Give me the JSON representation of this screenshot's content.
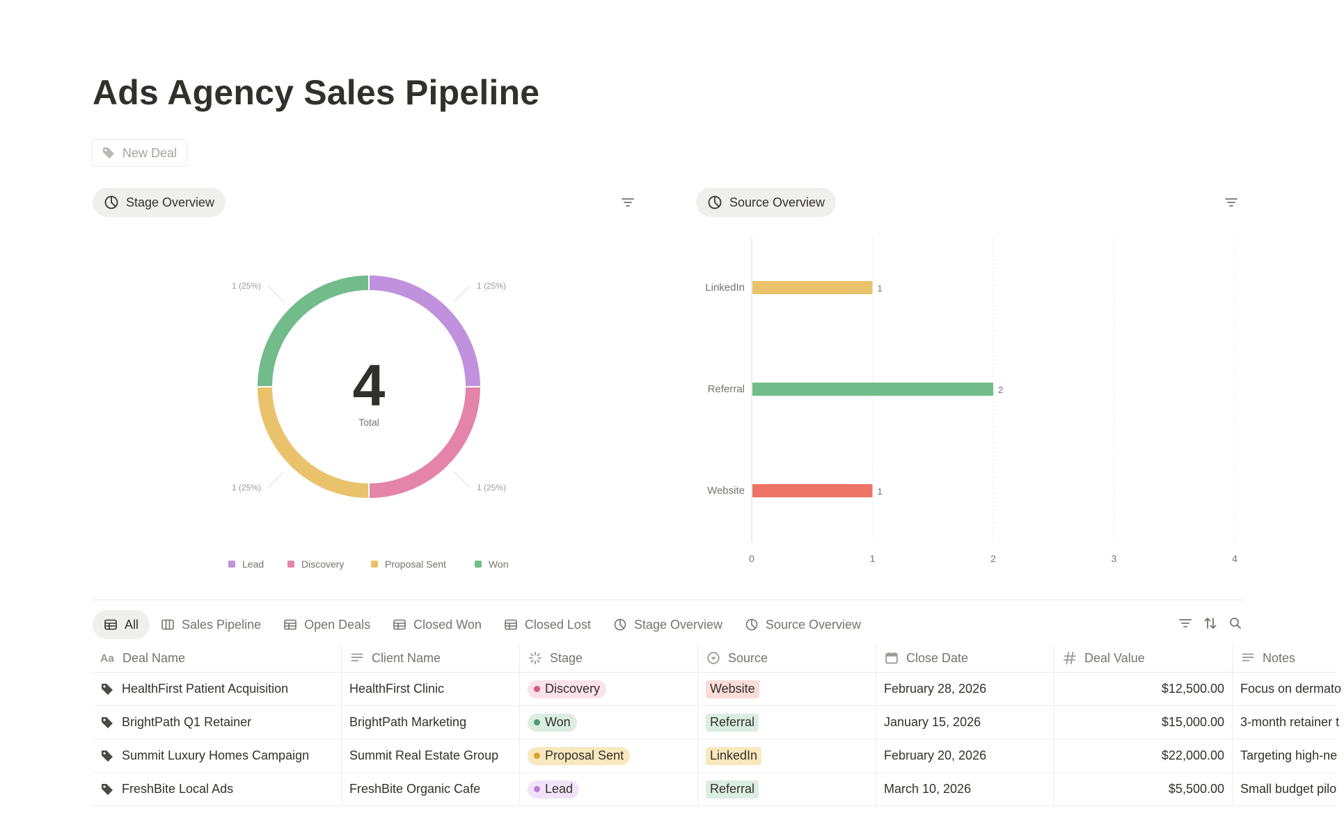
{
  "page": {
    "title": "Ads Agency Sales Pipeline",
    "new_button": "New Deal"
  },
  "stage_chart_view": {
    "label": "Stage Overview"
  },
  "source_chart_view": {
    "label": "Source Overview"
  },
  "chart_data": [
    {
      "type": "pie",
      "variant": "donut",
      "center_value": "4",
      "center_label": "Total",
      "categories": [
        "Lead",
        "Discovery",
        "Proposal Sent",
        "Won"
      ],
      "values": [
        1,
        1,
        1,
        1
      ],
      "data_labels": [
        "1 (25%)",
        "1 (25%)",
        "1 (25%)",
        "1 (25%)"
      ],
      "colors": [
        "#c091dd",
        "#e384a8",
        "#eac26b",
        "#71bc8a"
      ],
      "legend_position": "bottom"
    },
    {
      "type": "bar",
      "orientation": "horizontal",
      "categories": [
        "LinkedIn",
        "Referral",
        "Website"
      ],
      "values": [
        1,
        2,
        1
      ],
      "colors": [
        "#eac26b",
        "#71bc8a",
        "#eb7467"
      ],
      "xlim": [
        0,
        4
      ],
      "x_ticks": [
        "0",
        "1",
        "2",
        "3",
        "4"
      ],
      "grid": true
    }
  ],
  "views": {
    "tabs": [
      {
        "label": "All",
        "icon": "table-icon",
        "active": true
      },
      {
        "label": "Sales Pipeline",
        "icon": "board-icon",
        "active": false
      },
      {
        "label": "Open Deals",
        "icon": "table-icon",
        "active": false
      },
      {
        "label": "Closed Won",
        "icon": "table-icon",
        "active": false
      },
      {
        "label": "Closed Lost",
        "icon": "table-icon",
        "active": false
      },
      {
        "label": "Stage Overview",
        "icon": "chart-icon",
        "active": false
      },
      {
        "label": "Source Overview",
        "icon": "chart-icon",
        "active": false
      }
    ]
  },
  "table": {
    "columns": [
      "Deal Name",
      "Client Name",
      "Stage",
      "Source",
      "Close Date",
      "Deal Value",
      "Notes"
    ],
    "rows": [
      {
        "deal": "HealthFirst Patient Acquisition",
        "client": "HealthFirst Clinic",
        "stage": "Discovery",
        "source": "Website",
        "close": "February 28, 2026",
        "value": "$12,500.00",
        "notes": "Focus on dermato"
      },
      {
        "deal": "BrightPath Q1 Retainer",
        "client": "BrightPath Marketing",
        "stage": "Won",
        "source": "Referral",
        "close": "January 15, 2026",
        "value": "$15,000.00",
        "notes": "3-month retainer t"
      },
      {
        "deal": "Summit Luxury Homes Campaign",
        "client": "Summit Real Estate Group",
        "stage": "Proposal Sent",
        "source": "LinkedIn",
        "close": "February 20, 2026",
        "value": "$22,000.00",
        "notes": "Targeting high-ne"
      },
      {
        "deal": "FreshBite Local Ads",
        "client": "FreshBite Organic Cafe",
        "stage": "Lead",
        "source": "Referral",
        "close": "March 10, 2026",
        "value": "$5,500.00",
        "notes": "Small budget pilo"
      }
    ]
  },
  "stage_colors": {
    "Lead": {
      "bg": "#f0e3f7",
      "dot": "#b87fd5"
    },
    "Discovery": {
      "bg": "#fae1ea",
      "dot": "#d6577f"
    },
    "Proposal Sent": {
      "bg": "#f9e7bd",
      "dot": "#d5a22d"
    },
    "Won": {
      "bg": "#dbede1",
      "dot": "#4a9c69"
    }
  },
  "source_colors": {
    "Website": "#fadcd8",
    "Referral": "#dbede1",
    "LinkedIn": "#f9e7bd"
  }
}
